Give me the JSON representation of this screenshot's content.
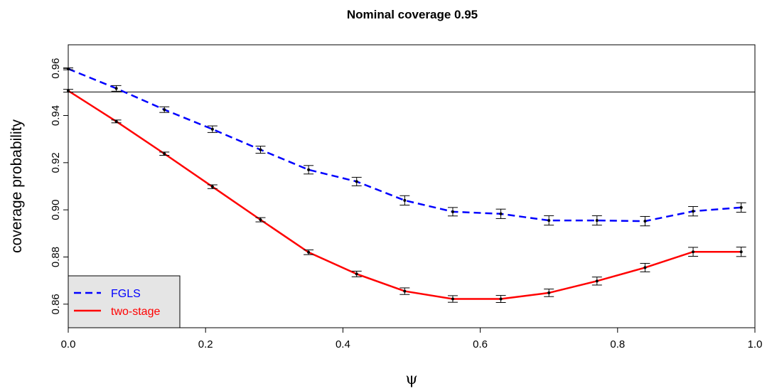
{
  "chart_data": {
    "type": "line",
    "title": "Nominal coverage 0.95",
    "xlabel": "ψ",
    "ylabel": "coverage probability",
    "xlim": [
      0,
      1
    ],
    "ylim": [
      0.85,
      0.97
    ],
    "xticks": [
      "0.0",
      "0.2",
      "0.4",
      "0.6",
      "0.8",
      "1.0"
    ],
    "yticks": [
      "0.86",
      "0.88",
      "0.90",
      "0.92",
      "0.94",
      "0.96"
    ],
    "reference_line": 0.95,
    "x": [
      0.0,
      0.07,
      0.14,
      0.21,
      0.28,
      0.35,
      0.42,
      0.49,
      0.56,
      0.63,
      0.7,
      0.77,
      0.84,
      0.91,
      0.98
    ],
    "series": [
      {
        "name": "FGLS",
        "color": "#0000ff",
        "linestyle": "dashed",
        "values": [
          0.9598,
          0.9515,
          0.9425,
          0.9342,
          0.9255,
          0.917,
          0.912,
          0.904,
          0.8992,
          0.8983,
          0.8955,
          0.8955,
          0.8952,
          0.8994,
          0.901
        ],
        "err": [
          0.0004,
          0.0012,
          0.0012,
          0.0014,
          0.0015,
          0.0018,
          0.0018,
          0.002,
          0.0018,
          0.002,
          0.002,
          0.002,
          0.002,
          0.002,
          0.002
        ]
      },
      {
        "name": "two-stage",
        "color": "#ff0000",
        "linestyle": "solid",
        "values": [
          0.9505,
          0.9375,
          0.9238,
          0.9098,
          0.8958,
          0.882,
          0.8728,
          0.8655,
          0.8622,
          0.8622,
          0.8648,
          0.8698,
          0.8755,
          0.8822,
          0.8822
        ],
        "err": [
          0.0006,
          0.0006,
          0.0007,
          0.0008,
          0.0009,
          0.001,
          0.0012,
          0.0014,
          0.0014,
          0.0015,
          0.0016,
          0.0017,
          0.0018,
          0.0019,
          0.002
        ]
      }
    ],
    "legend": {
      "position": "bottom-left",
      "background": "#e5e5e5",
      "entries": [
        "FGLS",
        "two-stage"
      ]
    }
  }
}
